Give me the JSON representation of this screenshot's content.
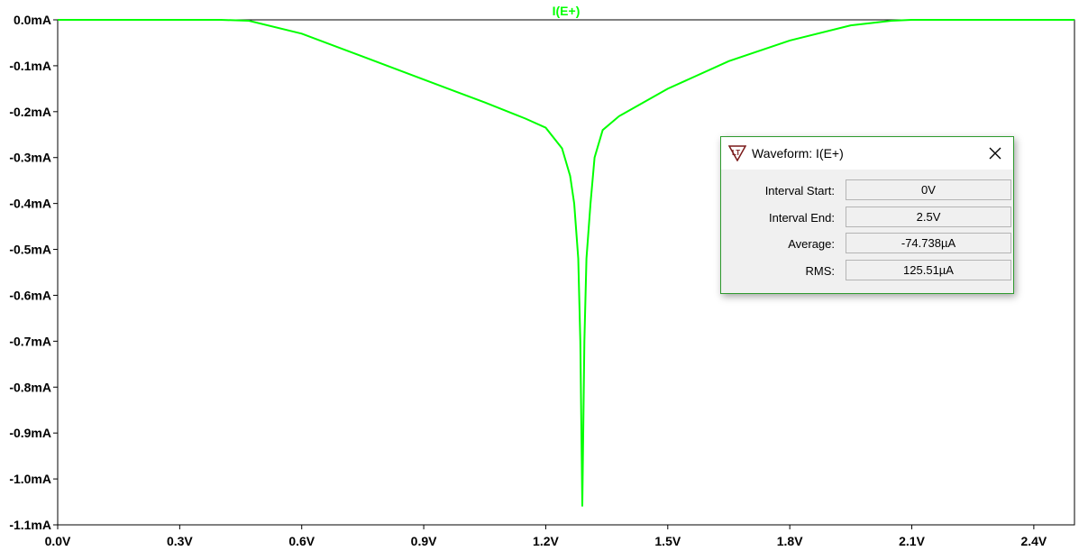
{
  "chart_data": {
    "type": "line",
    "title": "I(E+)",
    "xlabel": "",
    "ylabel": "",
    "xlim": [
      0.0,
      2.5
    ],
    "ylim": [
      -1.1,
      0.0
    ],
    "x_ticks": [
      "0.0V",
      "0.3V",
      "0.6V",
      "0.9V",
      "1.2V",
      "1.5V",
      "1.8V",
      "2.1V",
      "2.4V"
    ],
    "x_tick_values": [
      0.0,
      0.3,
      0.6,
      0.9,
      1.2,
      1.5,
      1.8,
      2.1,
      2.4
    ],
    "y_ticks": [
      "0.0mA",
      "-0.1mA",
      "-0.2mA",
      "-0.3mA",
      "-0.4mA",
      "-0.5mA",
      "-0.6mA",
      "-0.7mA",
      "-0.8mA",
      "-0.9mA",
      "-1.0mA",
      "-1.1mA"
    ],
    "y_tick_values": [
      0.0,
      -0.1,
      -0.2,
      -0.3,
      -0.4,
      -0.5,
      -0.6,
      -0.7,
      -0.8,
      -0.9,
      -1.0,
      -1.1
    ],
    "grid": false,
    "series": [
      {
        "name": "I(E+)",
        "color": "#00ff00",
        "x": [
          0.0,
          0.4,
          0.47,
          0.6,
          0.75,
          0.9,
          1.05,
          1.15,
          1.2,
          1.24,
          1.26,
          1.27,
          1.28,
          1.285,
          1.29,
          1.295,
          1.3,
          1.31,
          1.32,
          1.34,
          1.38,
          1.5,
          1.65,
          1.8,
          1.95,
          2.05,
          2.1,
          2.5
        ],
        "values": [
          0.0,
          0.0,
          -0.002,
          -0.03,
          -0.08,
          -0.13,
          -0.18,
          -0.215,
          -0.235,
          -0.28,
          -0.34,
          -0.4,
          -0.52,
          -0.7,
          -1.06,
          -0.7,
          -0.52,
          -0.4,
          -0.3,
          -0.24,
          -0.21,
          -0.15,
          -0.09,
          -0.045,
          -0.012,
          -0.002,
          0.0,
          0.0
        ]
      }
    ]
  },
  "dialog": {
    "title": "Waveform: I(E+)",
    "rows": [
      {
        "label": "Interval Start:",
        "value": "0V"
      },
      {
        "label": "Interval End:",
        "value": "2.5V"
      },
      {
        "label": "Average:",
        "value": "-74.738µA"
      },
      {
        "label": "RMS:",
        "value": "125.51µA"
      }
    ]
  }
}
